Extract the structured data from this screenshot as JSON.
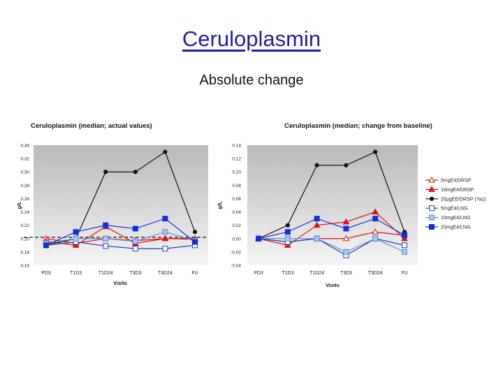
{
  "slide": {
    "title": "Ceruloplasmin",
    "subtitle": "Absolute change"
  },
  "colors": {
    "red": "#e01010",
    "black": "#111111",
    "dark_blue": "#1f3fb0",
    "light_blue": "#5a8fd6",
    "blue": "#1030e0",
    "plot_bg_top": "#b9b9b9",
    "plot_bg_bottom": "#f5f5f5"
  },
  "legend": {
    "placement": "right",
    "entries": [
      "5mgE4/DRSP",
      "10mgE4/DRSP",
      "20µgEE/DRSP (Yaz)",
      "5mgE4/LNG",
      "10mgE4/LNG",
      "20mgE4/LNG"
    ]
  },
  "chart_data": [
    {
      "type": "line",
      "title": "Ceruloplasmin (median; actual values)",
      "xlabel": "Visits",
      "ylabel": "g/L",
      "categories": [
        "PD3",
        "T1D3",
        "T1D24",
        "T3D3",
        "T3D24",
        "FU"
      ],
      "y_ticks": [
        "0.34",
        "0.32",
        "0.30",
        "0.28",
        "0.26",
        "0.24",
        "0.22",
        "0.20",
        "0.18",
        "0.16"
      ],
      "ylim": [
        0.16,
        0.34
      ],
      "reference_line": 0.202,
      "series": [
        {
          "name": "5mgE4/DRSP",
          "values": [
            0.2,
            0.193,
            0.2,
            0.197,
            0.2,
            0.199
          ]
        },
        {
          "name": "10mgE4/DRSP",
          "values": [
            0.196,
            0.19,
            0.218,
            0.193,
            0.2,
            0.2
          ]
        },
        {
          "name": "20µgEE/DRSP (Yaz)",
          "values": [
            0.19,
            0.2,
            0.3,
            0.3,
            0.33,
            0.21
          ]
        },
        {
          "name": "5mgE4/LNG",
          "values": [
            0.19,
            0.195,
            0.189,
            0.185,
            0.185,
            0.19
          ]
        },
        {
          "name": "10mgE4/LNG",
          "values": [
            0.193,
            0.2,
            0.2,
            0.196,
            0.21,
            0.197
          ]
        },
        {
          "name": "20mgE4/LNG",
          "values": [
            0.19,
            0.21,
            0.22,
            0.215,
            0.23,
            0.195
          ]
        }
      ]
    },
    {
      "type": "line",
      "title": "Ceruloplasmin (median; change from baseline)",
      "xlabel": "Visits",
      "ylabel": "g/L",
      "categories": [
        "PD3",
        "T1D3",
        "T1D24",
        "T3D3",
        "T3D24",
        "FU"
      ],
      "y_ticks": [
        "0.14",
        "0.12",
        "0.10",
        "0.08",
        "0.06",
        "0.04",
        "0.02",
        "0.00",
        "-0.02",
        "-0.04"
      ],
      "ylim": [
        -0.04,
        0.14
      ],
      "series": [
        {
          "name": "5mgE4/DRSP",
          "values": [
            0.0,
            -0.005,
            0.0,
            0.0,
            0.01,
            0.005
          ]
        },
        {
          "name": "10mgE4/DRSP",
          "values": [
            0.0,
            -0.01,
            0.02,
            0.025,
            0.04,
            0.0
          ]
        },
        {
          "name": "20µgEE/DRSP (Yaz)",
          "values": [
            0.0,
            0.02,
            0.11,
            0.11,
            0.13,
            0.01
          ]
        },
        {
          "name": "5mgE4/LNG",
          "values": [
            0.0,
            -0.005,
            0.0,
            -0.025,
            0.0,
            -0.01
          ]
        },
        {
          "name": "10mgE4/LNG",
          "values": [
            0.0,
            0.0,
            0.0,
            -0.02,
            0.0,
            -0.02
          ]
        },
        {
          "name": "20mgE4/LNG",
          "values": [
            0.0,
            0.01,
            0.03,
            0.015,
            0.03,
            0.005
          ]
        }
      ]
    }
  ]
}
